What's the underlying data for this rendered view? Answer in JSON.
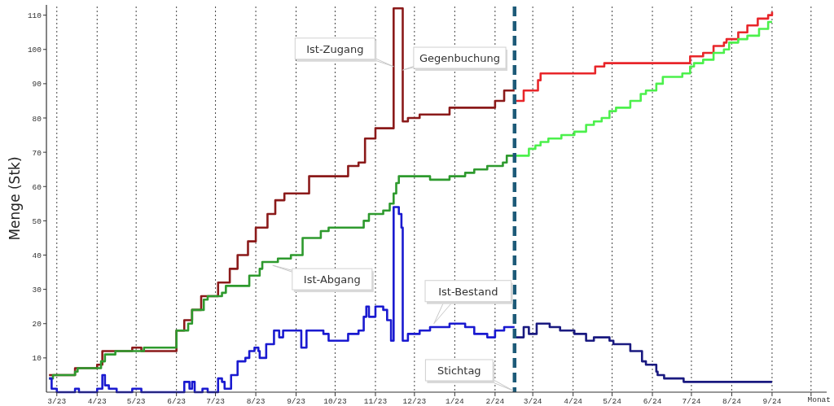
{
  "chart_data": {
    "type": "step",
    "ylabel": "Menge (Stk)",
    "xlabel": "Monat",
    "xlim": [
      "2023-02-21",
      "2024-10-13"
    ],
    "ylim": [
      0,
      113
    ],
    "xticks": [
      {
        "value": "2023-03",
        "label": "3/23"
      },
      {
        "value": "2023-04",
        "label": "4/23"
      },
      {
        "value": "2023-05",
        "label": "5/23"
      },
      {
        "value": "2023-06",
        "label": "6/23"
      },
      {
        "value": "2023-07",
        "label": "7/23"
      },
      {
        "value": "2023-08",
        "label": "8/23"
      },
      {
        "value": "2023-09",
        "label": "9/23"
      },
      {
        "value": "2023-10",
        "label": "10/23"
      },
      {
        "value": "2023-11",
        "label": "11/23"
      },
      {
        "value": "2023-12",
        "label": "12/23"
      },
      {
        "value": "2024-01",
        "label": "1/24"
      },
      {
        "value": "2024-02",
        "label": "2/24"
      },
      {
        "value": "2024-03",
        "label": "3/24"
      },
      {
        "value": "2024-04",
        "label": "4/24"
      },
      {
        "value": "2024-05",
        "label": "5/24"
      },
      {
        "value": "2024-06",
        "label": "6/24"
      },
      {
        "value": "2024-07",
        "label": "7/24"
      },
      {
        "value": "2024-08",
        "label": "8/24"
      },
      {
        "value": "2024-09",
        "label": "9/24"
      },
      {
        "value": "2024-10",
        "label": null
      }
    ],
    "yticks": [
      10,
      20,
      30,
      40,
      50,
      60,
      70,
      80,
      90,
      100,
      110
    ],
    "grid": "x",
    "line_style": "solid",
    "series": [
      {
        "color": "#8b1a1a",
        "x": [
          "2023-02-23",
          "2023-03-15",
          "2023-04-01",
          "2023-04-05",
          "2023-04-28",
          "2023-05-05",
          "2023-06-01",
          "2023-06-07",
          "2023-06-13",
          "2023-06-20",
          "2023-07-03",
          "2023-07-12",
          "2023-07-18",
          "2023-07-26",
          "2023-08-01",
          "2023-08-10",
          "2023-08-16",
          "2023-08-23",
          "2023-09-11",
          "2023-10-11",
          "2023-10-19",
          "2023-10-24",
          "2023-11-01",
          "2023-11-15",
          "2023-11-22",
          "2023-11-26",
          "2023-12-05",
          "2023-12-28",
          "2024-02-01",
          "2024-02-08",
          "2024-02-16"
        ],
        "values": [
          5,
          7,
          8,
          12,
          13,
          12,
          18,
          21,
          24,
          28,
          32,
          36,
          40,
          44,
          48,
          52,
          56,
          58,
          63,
          66,
          67,
          74,
          77,
          112,
          79,
          80,
          81,
          83,
          85,
          88,
          88
        ]
      },
      {
        "color": "#e8262a",
        "x": [
          "2024-02-16",
          "2024-02-23",
          "2024-03-05",
          "2024-03-07",
          "2024-04-18",
          "2024-04-25",
          "2024-06-30",
          "2024-07-10",
          "2024-07-18",
          "2024-07-26",
          "2024-07-28",
          "2024-08-06",
          "2024-08-13",
          "2024-08-21",
          "2024-08-29",
          "2024-09-01"
        ],
        "values": [
          85,
          88,
          91,
          93,
          95,
          96,
          98,
          99,
          101,
          102,
          103,
          105,
          107,
          109,
          110,
          111
        ]
      },
      {
        "color": "#2e9a2e",
        "x": [
          "2023-02-23",
          "2023-02-26",
          "2023-03-15",
          "2023-03-17",
          "2023-04-04",
          "2023-04-07",
          "2023-04-15",
          "2023-05-07",
          "2023-06-01",
          "2023-06-10",
          "2023-06-13",
          "2023-06-22",
          "2023-06-25",
          "2023-07-06",
          "2023-07-09",
          "2023-07-27",
          "2023-08-04",
          "2023-08-06",
          "2023-08-18",
          "2023-08-28",
          "2023-09-06",
          "2023-09-20",
          "2023-09-26",
          "2023-10-23",
          "2023-10-27",
          "2023-11-07",
          "2023-11-12",
          "2023-11-15",
          "2023-11-17",
          "2023-11-19",
          "2023-12-13",
          "2023-12-28",
          "2024-01-09",
          "2024-01-16",
          "2024-01-26",
          "2024-02-07",
          "2024-02-10",
          "2024-02-16"
        ],
        "values": [
          4,
          5,
          6,
          7,
          9,
          11,
          12,
          13,
          18,
          20,
          24,
          27,
          28,
          29,
          31,
          34,
          36,
          38,
          39,
          40,
          45,
          47,
          48,
          50,
          52,
          53,
          55,
          58,
          61,
          63,
          62,
          63,
          64,
          65,
          66,
          67,
          69,
          69
        ]
      },
      {
        "color": "#4cf04c",
        "x": [
          "2024-02-16",
          "2024-02-27",
          "2024-03-03",
          "2024-03-07",
          "2024-03-13",
          "2024-03-23",
          "2024-04-02",
          "2024-04-11",
          "2024-04-17",
          "2024-04-23",
          "2024-04-29",
          "2024-05-04",
          "2024-05-15",
          "2024-05-23",
          "2024-05-27",
          "2024-06-04",
          "2024-06-09",
          "2024-06-24",
          "2024-06-30",
          "2024-07-03",
          "2024-07-10",
          "2024-07-18",
          "2024-07-26",
          "2024-07-30",
          "2024-08-06",
          "2024-08-13",
          "2024-08-22",
          "2024-08-29",
          "2024-09-01"
        ],
        "values": [
          69,
          71,
          72,
          73,
          74,
          75,
          76,
          78,
          79,
          80,
          82,
          83,
          85,
          87,
          88,
          90,
          92,
          93,
          95,
          96,
          97,
          99,
          100,
          102,
          103,
          104,
          106,
          108,
          108
        ]
      },
      {
        "color": "#1a1ad0",
        "x": [
          "2023-02-23",
          "2023-02-25",
          "2023-03-01",
          "2023-03-15",
          "2023-03-18",
          "2023-04-01",
          "2023-04-05",
          "2023-04-07",
          "2023-04-10",
          "2023-04-16",
          "2023-04-28",
          "2023-05-05",
          "2023-06-07",
          "2023-06-11",
          "2023-06-13",
          "2023-06-15",
          "2023-06-21",
          "2023-06-25",
          "2023-07-03",
          "2023-07-06",
          "2023-07-08",
          "2023-07-13",
          "2023-07-18",
          "2023-07-24",
          "2023-07-27",
          "2023-07-31",
          "2023-08-03",
          "2023-08-04",
          "2023-08-09",
          "2023-08-15",
          "2023-08-19",
          "2023-08-22",
          "2023-09-05",
          "2023-09-09",
          "2023-09-22",
          "2023-09-26",
          "2023-10-11",
          "2023-10-19",
          "2023-10-23",
          "2023-10-25",
          "2023-10-27",
          "2023-11-01",
          "2023-11-07",
          "2023-11-10",
          "2023-11-13",
          "2023-11-15",
          "2023-11-19",
          "2023-11-21",
          "2023-11-22",
          "2023-11-26",
          "2023-12-05",
          "2023-12-13",
          "2023-12-28",
          "2024-01-09",
          "2024-01-16",
          "2024-01-26",
          "2024-02-01",
          "2024-02-08",
          "2024-02-16"
        ],
        "values": [
          4,
          1,
          0,
          1,
          0,
          1,
          5,
          2,
          1,
          0,
          1,
          0,
          3,
          1,
          3,
          0,
          1,
          0,
          4,
          3,
          1,
          5,
          9,
          10,
          12,
          13,
          12,
          10,
          14,
          18,
          16,
          18,
          13,
          18,
          17,
          15,
          17,
          18,
          22,
          25,
          22,
          25,
          24,
          21,
          15,
          54,
          52,
          48,
          15,
          17,
          18,
          19,
          20,
          19,
          17,
          16,
          18,
          19,
          19
        ]
      },
      {
        "color": "#1a1a80",
        "x": [
          "2024-02-16",
          "2024-02-23",
          "2024-02-27",
          "2024-03-04",
          "2024-03-14",
          "2024-03-22",
          "2024-04-02",
          "2024-04-11",
          "2024-04-17",
          "2024-04-29",
          "2024-05-02",
          "2024-05-15",
          "2024-05-24",
          "2024-05-27",
          "2024-06-04",
          "2024-06-05",
          "2024-06-10",
          "2024-06-25",
          "2024-09-01"
        ],
        "values": [
          16,
          19,
          17,
          20,
          19,
          18,
          17,
          15,
          16,
          15,
          14,
          12,
          9,
          8,
          6,
          5,
          4,
          3,
          3
        ]
      }
    ],
    "ref_lines": [
      {
        "axis": "x",
        "value": "2024-02-16",
        "label": "Stichtag",
        "color": "#1d5a78",
        "line_style": "dashed"
      }
    ],
    "annotations": [
      {
        "text": "Ist-Zugang",
        "x": "2023-11-15",
        "y": 95
      },
      {
        "text": "Gegenbuchung",
        "x": "2023-11-22",
        "y": 94
      },
      {
        "text": "Ist-Abgang",
        "x": "2023-08-14",
        "y": 37
      },
      {
        "text": "Ist-Bestand",
        "x": "2023-12-16",
        "y": 20
      }
    ]
  }
}
